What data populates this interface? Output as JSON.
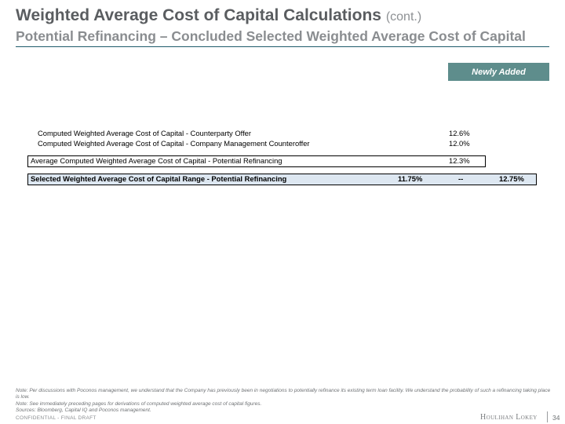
{
  "header": {
    "title": "Weighted Average Cost of Capital Calculations",
    "title_suffix": "(cont.)",
    "subtitle": "Potential Refinancing – Concluded Selected Weighted Average Cost of Capital"
  },
  "badge": {
    "label": "Newly Added",
    "color": "#5e8d8c"
  },
  "table": {
    "rows": [
      {
        "label": "Computed Weighted Average Cost of Capital - Counterparty Offer",
        "value": "12.6%"
      },
      {
        "label": "Computed Weighted Average Cost of Capital - Company Management Counteroffer",
        "value": "12.0%"
      }
    ],
    "average": {
      "label": "Average Computed Weighted Average Cost of Capital - Potential Refinancing",
      "value": "12.3%"
    },
    "selected": {
      "label": "Selected Weighted Average Cost of Capital Range - Potential Refinancing",
      "low": "11.75%",
      "separator": "--",
      "high": "12.75%",
      "fill_color": "#dde7f1"
    }
  },
  "notes": [
    "Note: Per discussions with Poconos management, we understand that the Company has previously been in negotiations to potentially refinance its existing term loan facility. We understand the probability of such a refinancing taking place is low.",
    "Note: See immediately preceding pages for derivations of computed weighted average cost of capital figures.",
    "Sources: Bloomberg, Capital IQ and Poconos management."
  ],
  "footer": {
    "confidential": "CONFIDENTIAL - FINAL DRAFT",
    "logo_text": "Houlihan Lokey",
    "page_number": "34"
  }
}
